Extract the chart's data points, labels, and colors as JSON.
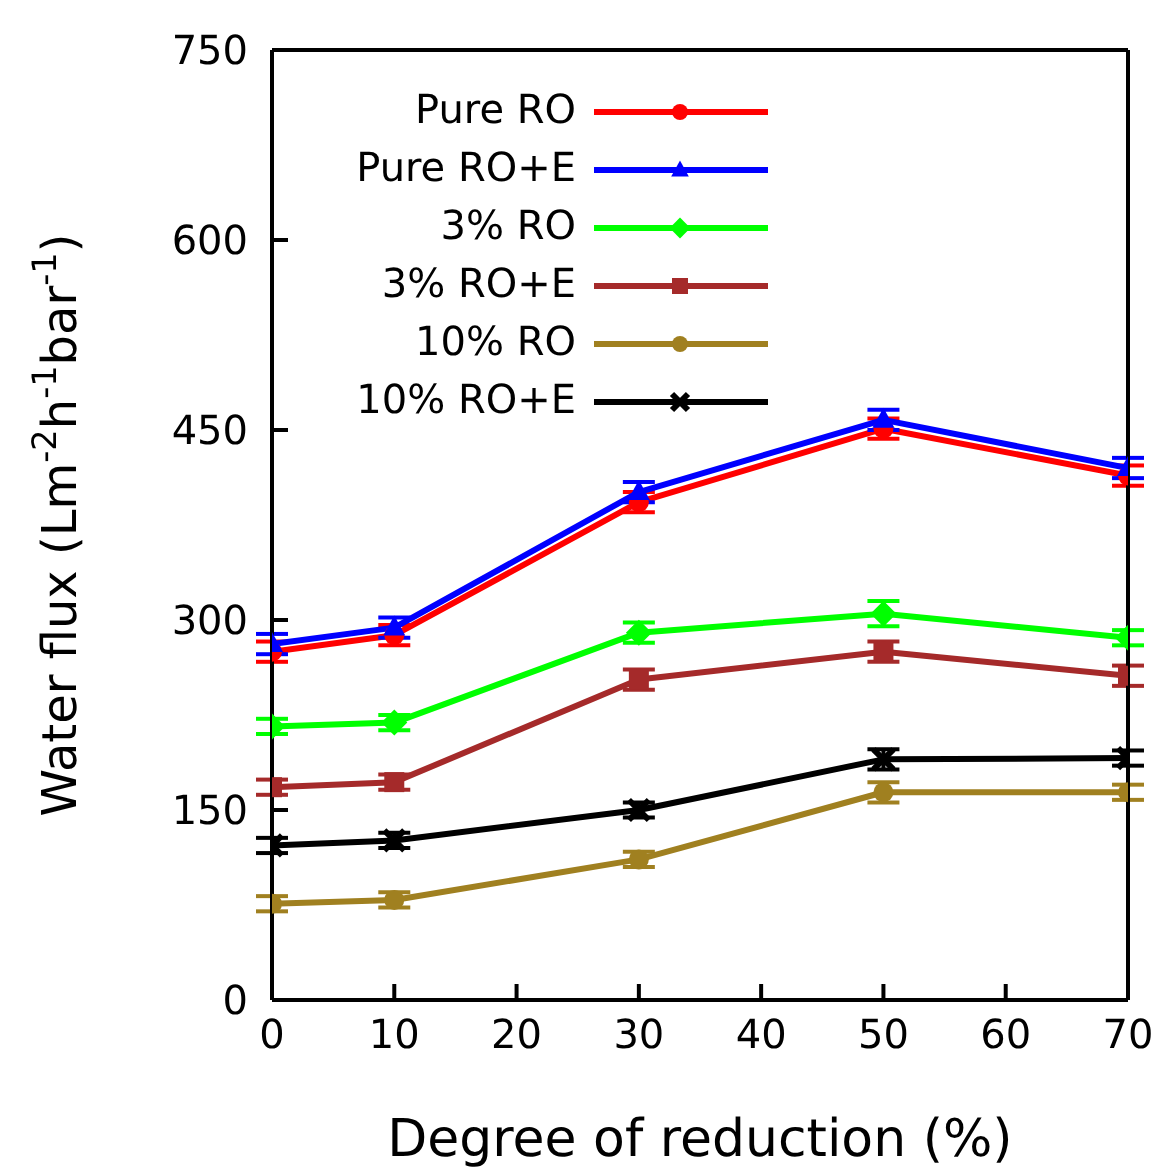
{
  "chart_data": {
    "type": "line",
    "xlabel": "Degree of reduction (%)",
    "ylabel": "Water flux (Lm$^{-2}$h$^{-1}$bar$^{-1}$)",
    "x": [
      0,
      10,
      30,
      50,
      70
    ],
    "xlim": [
      0,
      70
    ],
    "xticks": [
      0,
      10,
      20,
      30,
      40,
      50,
      60,
      70
    ],
    "ylim": [
      0,
      750
    ],
    "yticks": [
      0,
      150,
      300,
      450,
      600,
      750
    ],
    "grid": false,
    "legend": "top left",
    "series": [
      {
        "name": "Pure RO",
        "color": "#ff0000",
        "marker": "circle",
        "values": [
          275,
          288,
          393,
          451,
          414
        ],
        "errors": [
          8,
          8,
          8,
          8,
          8
        ]
      },
      {
        "name": "Pure RO+E",
        "color": "#0000ff",
        "marker": "triangle",
        "values": [
          281,
          294,
          401,
          458,
          420
        ],
        "errors": [
          8,
          8,
          8,
          8,
          8
        ]
      },
      {
        "name": "3% RO",
        "color": "#00ff00",
        "marker": "diamond",
        "values": [
          216,
          219,
          290,
          305,
          286
        ],
        "errors": [
          6,
          6,
          8,
          10,
          6
        ]
      },
      {
        "name": "3% RO+E",
        "color": "#a52a2a",
        "marker": "square",
        "values": [
          168,
          172,
          253,
          275,
          256
        ],
        "errors": [
          6,
          6,
          8,
          8,
          8
        ]
      },
      {
        "name": "10% RO",
        "color": "#a08020",
        "marker": "circle",
        "values": [
          76,
          79,
          111,
          164,
          164
        ],
        "errors": [
          6,
          6,
          6,
          8,
          6
        ]
      },
      {
        "name": "10% RO+E",
        "color": "#000000",
        "marker": "cross",
        "values": [
          122,
          126,
          150,
          190,
          191
        ],
        "errors": [
          6,
          6,
          6,
          8,
          6
        ]
      }
    ]
  }
}
